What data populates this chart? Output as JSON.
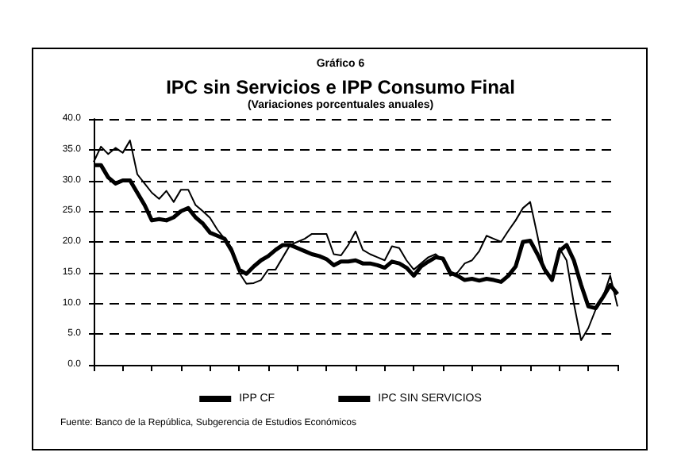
{
  "chart_data": {
    "type": "line",
    "title": "IPC sin Servicios e IPP Consumo Final",
    "subtitle": "(Variaciones porcentuales anuales)",
    "annotations": [
      "Gráfico 6",
      "Fuente: Banco de la República, Subgerencia de Estudios Económicos"
    ],
    "categories": [
      null,
      null,
      null,
      null,
      null,
      null,
      null,
      null,
      null,
      null,
      null,
      null,
      null,
      null,
      null,
      null,
      null,
      null,
      null,
      null,
      null,
      null,
      null,
      null,
      null,
      null,
      null,
      null,
      null,
      null,
      null,
      null,
      null,
      null,
      null,
      null,
      null,
      null,
      null,
      null,
      null,
      null,
      null,
      null,
      null,
      null,
      null,
      null,
      null,
      null,
      null,
      null,
      null,
      null,
      null,
      null,
      null,
      null,
      null,
      null,
      null,
      null,
      null,
      null,
      null,
      null,
      null,
      null,
      null,
      null,
      null,
      null,
      null
    ],
    "series": [
      {
        "name": "IPP CF",
        "color": "#000000",
        "values": [
          33,
          35.5,
          34.3,
          35.3,
          34.5,
          36.5,
          31,
          29.5,
          28,
          27,
          28.3,
          26.5,
          28.5,
          28.5,
          26,
          25,
          23.9,
          22,
          20.5,
          19,
          15,
          13.2,
          13.3,
          13.8,
          15.5,
          15.5,
          17.5,
          19.5,
          20,
          20.5,
          21.3,
          21.3,
          21.3,
          18,
          17.8,
          19.5,
          21.7,
          18.7,
          18,
          17.5,
          17,
          19.3,
          19,
          17,
          15.5,
          16.5,
          17.5,
          18,
          17,
          14.5,
          15,
          16.5,
          17,
          18.5,
          21,
          20.5,
          20,
          21.8,
          23.5,
          25.5,
          26.5,
          21,
          15,
          14,
          19,
          17,
          10,
          4,
          6,
          9,
          11,
          14.5,
          9.5
        ]
      },
      {
        "name": "IPC SIN SERVICIOS",
        "color": "#000000",
        "values": [
          32.5,
          32.5,
          30.5,
          29.5,
          30,
          30,
          28,
          26,
          23.5,
          23.7,
          23.5,
          24,
          25,
          25.5,
          24,
          23,
          21.5,
          21,
          20.5,
          18.5,
          15.5,
          14.8,
          16,
          17,
          17.7,
          18.7,
          19.5,
          19.5,
          19,
          18.5,
          18,
          17.7,
          17.2,
          16.2,
          16.8,
          16.8,
          17,
          16.5,
          16.5,
          16.2,
          15.8,
          16.8,
          16.5,
          15.8,
          14.5,
          16,
          16.8,
          17.5,
          17.3,
          15,
          14.5,
          13.8,
          14,
          13.7,
          14,
          13.8,
          13.5,
          14.5,
          16,
          20,
          20.2,
          18,
          15.5,
          13.8,
          18.5,
          19.5,
          17,
          13,
          9.5,
          9.2,
          11,
          13,
          11.5
        ]
      }
    ],
    "ylim": [
      0,
      40
    ],
    "yticks": [
      {
        "value": 0,
        "label": "0.0"
      },
      {
        "value": 5,
        "label": "5.0"
      },
      {
        "value": 10,
        "label": "10.0"
      },
      {
        "value": 15,
        "label": "15.0"
      },
      {
        "value": 20,
        "label": "20.0"
      },
      {
        "value": 25,
        "label": "25.0"
      },
      {
        "value": 30,
        "label": "30.0"
      },
      {
        "value": 35,
        "label": "35.0"
      },
      {
        "value": 40,
        "label": "40.0"
      }
    ],
    "grid": "y",
    "legend": "bottom",
    "marker": "none",
    "line_style": "solid"
  }
}
